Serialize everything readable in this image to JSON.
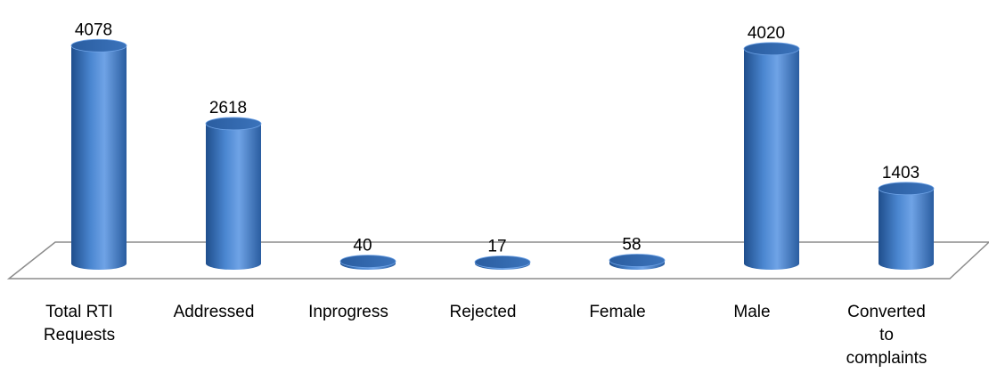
{
  "chart_data": {
    "type": "bar",
    "style": "3d-cylinder",
    "categories": [
      [
        "Total RTI",
        "Requests"
      ],
      [
        "Addressed"
      ],
      [
        "Inprogress"
      ],
      [
        "Rejected"
      ],
      [
        "Female"
      ],
      [
        "Male"
      ],
      [
        "Converted",
        "to",
        "complaints"
      ]
    ],
    "values": [
      4078,
      2618,
      40,
      17,
      58,
      4020,
      1403
    ],
    "title": "",
    "xlabel": "",
    "ylabel": "",
    "ylim": [
      0,
      4300
    ],
    "grid": false,
    "legend": "none",
    "colors": {
      "bar_dark": "#1f4e8c",
      "bar_mid": "#4a86d0",
      "bar_light": "#6fa3e6",
      "bar_top": "#2f65a8",
      "floor_stroke": "#8c8c8c",
      "floor_fill": "#ffffff"
    }
  }
}
